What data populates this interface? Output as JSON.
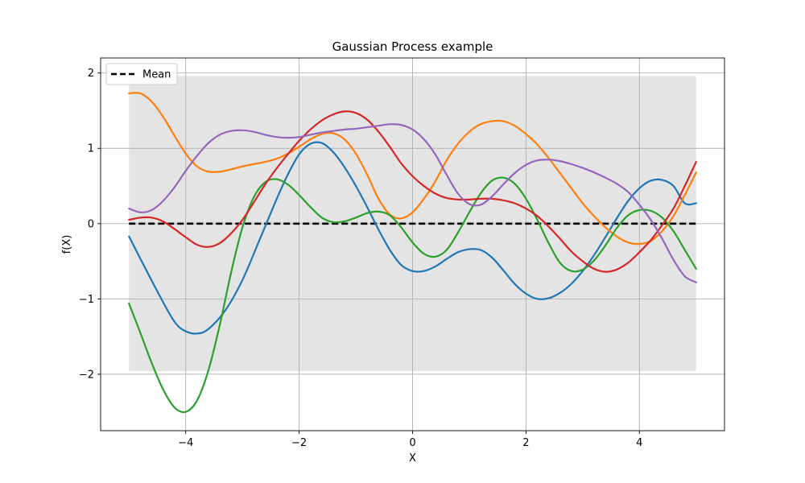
{
  "chart_data": {
    "type": "line",
    "title": "Gaussian Process example",
    "xlabel": "X",
    "ylabel": "f(X)",
    "xlim": [
      -5.5,
      5.5
    ],
    "ylim": [
      -2.75,
      2.2
    ],
    "grid": true,
    "legend_position": "top-left",
    "x_ticks": [
      -4,
      -2,
      0,
      2,
      4
    ],
    "x_tick_labels": [
      "−4",
      "−2",
      "0",
      "2",
      "4"
    ],
    "y_ticks": [
      -2,
      -1,
      0,
      1,
      2
    ],
    "y_tick_labels": [
      "−2",
      "−1",
      "0",
      "1",
      "2"
    ],
    "confidence_band": {
      "x": [
        -5,
        5
      ],
      "lower": -1.96,
      "upper": 1.96,
      "color": "#e4e4e4"
    },
    "mean": {
      "name": "Mean",
      "x": [
        -5,
        5
      ],
      "y": [
        0,
        0
      ],
      "color": "#000000",
      "style": "dashed"
    },
    "series": [
      {
        "color": "#1f77b4",
        "x": [
          -5.0,
          -4.5,
          -4.2,
          -4.0,
          -3.8,
          -3.6,
          -3.3,
          -3.0,
          -2.7,
          -2.4,
          -2.2,
          -2.0,
          -1.8,
          -1.6,
          -1.4,
          -1.2,
          -1.0,
          -0.8,
          -0.6,
          -0.4,
          -0.2,
          0.0,
          0.2,
          0.4,
          0.6,
          0.8,
          1.0,
          1.2,
          1.4,
          1.6,
          1.8,
          2.0,
          2.2,
          2.4,
          2.6,
          2.8,
          3.0,
          3.2,
          3.4,
          3.6,
          3.8,
          4.0,
          4.2,
          4.4,
          4.6,
          4.8,
          5.0
        ],
        "y": [
          -0.17,
          -0.9,
          -1.3,
          -1.43,
          -1.46,
          -1.4,
          -1.15,
          -0.75,
          -0.22,
          0.32,
          0.65,
          0.92,
          1.06,
          1.07,
          0.95,
          0.75,
          0.5,
          0.22,
          -0.08,
          -0.35,
          -0.55,
          -0.63,
          -0.63,
          -0.57,
          -0.47,
          -0.38,
          -0.34,
          -0.35,
          -0.45,
          -0.62,
          -0.8,
          -0.93,
          -1.0,
          -0.99,
          -0.92,
          -0.8,
          -0.63,
          -0.42,
          -0.18,
          0.07,
          0.3,
          0.47,
          0.57,
          0.58,
          0.5,
          0.27,
          0.27
        ]
      },
      {
        "color": "#ff7f0e",
        "x": [
          -5.0,
          -4.8,
          -4.6,
          -4.4,
          -4.2,
          -4.0,
          -3.8,
          -3.6,
          -3.4,
          -3.2,
          -3.0,
          -2.8,
          -2.6,
          -2.4,
          -2.2,
          -2.0,
          -1.8,
          -1.6,
          -1.4,
          -1.2,
          -1.0,
          -0.8,
          -0.6,
          -0.4,
          -0.2,
          0.0,
          0.2,
          0.4,
          0.6,
          0.8,
          1.0,
          1.2,
          1.4,
          1.6,
          1.8,
          2.0,
          2.2,
          2.4,
          2.6,
          2.8,
          3.0,
          3.2,
          3.4,
          3.6,
          3.8,
          4.0,
          4.2,
          4.4,
          4.6,
          4.8,
          5.0
        ],
        "y": [
          1.73,
          1.73,
          1.62,
          1.42,
          1.17,
          0.93,
          0.76,
          0.69,
          0.69,
          0.72,
          0.76,
          0.79,
          0.82,
          0.86,
          0.93,
          1.02,
          1.12,
          1.19,
          1.2,
          1.12,
          0.93,
          0.65,
          0.33,
          0.12,
          0.07,
          0.15,
          0.33,
          0.56,
          0.84,
          1.06,
          1.22,
          1.32,
          1.36,
          1.36,
          1.3,
          1.19,
          1.05,
          0.87,
          0.67,
          0.47,
          0.27,
          0.1,
          -0.05,
          -0.17,
          -0.25,
          -0.27,
          -0.23,
          -0.1,
          0.1,
          0.38,
          0.68
        ]
      },
      {
        "color": "#2ca02c",
        "x": [
          -5.0,
          -4.8,
          -4.6,
          -4.4,
          -4.2,
          -4.0,
          -3.8,
          -3.6,
          -3.4,
          -3.2,
          -3.0,
          -2.8,
          -2.6,
          -2.4,
          -2.2,
          -2.0,
          -1.8,
          -1.6,
          -1.4,
          -1.2,
          -1.0,
          -0.8,
          -0.6,
          -0.4,
          -0.2,
          0.0,
          0.2,
          0.4,
          0.6,
          0.8,
          1.0,
          1.2,
          1.4,
          1.6,
          1.8,
          2.0,
          2.2,
          2.4,
          2.6,
          2.8,
          3.0,
          3.2,
          3.4,
          3.6,
          3.8,
          4.0,
          4.2,
          4.4,
          4.6,
          4.8,
          5.0
        ],
        "y": [
          -1.06,
          -1.45,
          -1.85,
          -2.2,
          -2.44,
          -2.5,
          -2.35,
          -1.95,
          -1.35,
          -0.65,
          -0.05,
          0.35,
          0.55,
          0.59,
          0.52,
          0.38,
          0.22,
          0.08,
          0.02,
          0.03,
          0.08,
          0.14,
          0.16,
          0.11,
          -0.05,
          -0.25,
          -0.4,
          -0.44,
          -0.35,
          -0.12,
          0.15,
          0.4,
          0.57,
          0.61,
          0.53,
          0.33,
          0.05,
          -0.26,
          -0.52,
          -0.63,
          -0.61,
          -0.49,
          -0.29,
          -0.06,
          0.11,
          0.18,
          0.17,
          0.08,
          -0.1,
          -0.35,
          -0.6
        ]
      },
      {
        "color": "#d62728",
        "x": [
          -5.0,
          -4.8,
          -4.6,
          -4.4,
          -4.2,
          -4.0,
          -3.8,
          -3.6,
          -3.4,
          -3.2,
          -3.0,
          -2.8,
          -2.6,
          -2.4,
          -2.2,
          -2.0,
          -1.8,
          -1.6,
          -1.4,
          -1.2,
          -1.0,
          -0.8,
          -0.6,
          -0.4,
          -0.2,
          0.0,
          0.2,
          0.4,
          0.6,
          0.8,
          1.0,
          1.2,
          1.4,
          1.6,
          1.8,
          2.0,
          2.2,
          2.4,
          2.6,
          2.8,
          3.0,
          3.2,
          3.4,
          3.6,
          3.8,
          4.0,
          4.2,
          4.4,
          4.6,
          4.8,
          5.0
        ],
        "y": [
          0.05,
          0.08,
          0.08,
          0.03,
          -0.07,
          -0.18,
          -0.28,
          -0.31,
          -0.26,
          -0.13,
          0.05,
          0.28,
          0.52,
          0.73,
          0.92,
          1.1,
          1.25,
          1.37,
          1.45,
          1.49,
          1.47,
          1.38,
          1.22,
          1.02,
          0.8,
          0.63,
          0.5,
          0.4,
          0.34,
          0.32,
          0.32,
          0.33,
          0.33,
          0.31,
          0.27,
          0.2,
          0.1,
          -0.04,
          -0.2,
          -0.37,
          -0.5,
          -0.6,
          -0.64,
          -0.61,
          -0.52,
          -0.38,
          -0.22,
          -0.02,
          0.2,
          0.5,
          0.82
        ]
      },
      {
        "color": "#9467bd",
        "x": [
          -5.0,
          -4.8,
          -4.6,
          -4.4,
          -4.2,
          -4.0,
          -3.8,
          -3.6,
          -3.4,
          -3.2,
          -3.0,
          -2.8,
          -2.6,
          -2.4,
          -2.2,
          -2.0,
          -1.8,
          -1.6,
          -1.4,
          -1.2,
          -1.0,
          -0.8,
          -0.6,
          -0.4,
          -0.2,
          0.0,
          0.2,
          0.4,
          0.6,
          0.8,
          1.0,
          1.2,
          1.4,
          1.6,
          1.8,
          2.0,
          2.2,
          2.4,
          2.6,
          2.8,
          3.0,
          3.2,
          3.4,
          3.6,
          3.8,
          4.0,
          4.2,
          4.4,
          4.6,
          4.8,
          5.0
        ],
        "y": [
          0.2,
          0.15,
          0.18,
          0.3,
          0.48,
          0.7,
          0.9,
          1.07,
          1.18,
          1.23,
          1.24,
          1.22,
          1.18,
          1.15,
          1.14,
          1.15,
          1.18,
          1.21,
          1.23,
          1.25,
          1.26,
          1.28,
          1.3,
          1.32,
          1.31,
          1.25,
          1.12,
          0.92,
          0.65,
          0.4,
          0.26,
          0.25,
          0.36,
          0.52,
          0.67,
          0.78,
          0.84,
          0.85,
          0.83,
          0.79,
          0.74,
          0.68,
          0.61,
          0.53,
          0.42,
          0.25,
          0.05,
          -0.2,
          -0.48,
          -0.7,
          -0.78
        ]
      }
    ]
  }
}
